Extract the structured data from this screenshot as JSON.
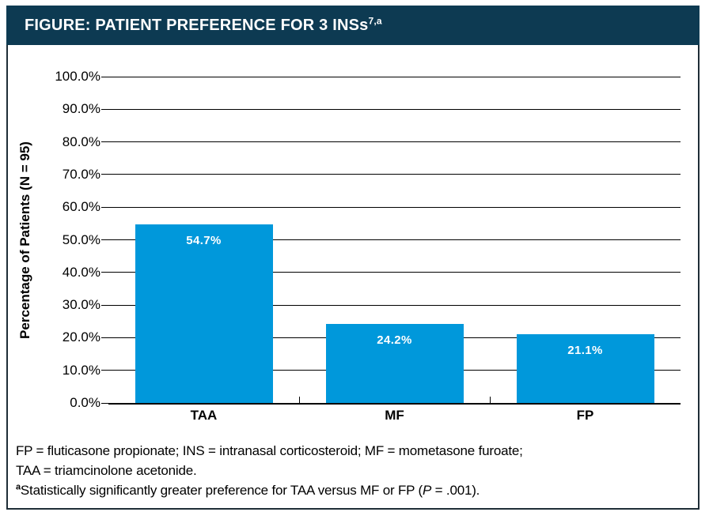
{
  "header": {
    "title": "FIGURE: PATIENT PREFERENCE FOR 3 INSs",
    "title_superscript": "7,a"
  },
  "chart_data": {
    "type": "bar",
    "categories": [
      "TAA",
      "MF",
      "FP"
    ],
    "values": [
      54.7,
      24.2,
      21.1
    ],
    "value_labels": [
      "54.7%",
      "24.2%",
      "21.1%"
    ],
    "title": "FIGURE: PATIENT PREFERENCE FOR 3 INSs",
    "xlabel": "",
    "ylabel": "Percentage of Patients (N = 95)",
    "ylim": [
      0,
      100
    ],
    "ytick_step": 10,
    "ytick_labels": [
      "0.0%",
      "10.0%",
      "20.0%",
      "30.0%",
      "40.0%",
      "50.0%",
      "60.0%",
      "70.0%",
      "80.0%",
      "90.0%",
      "100.0%"
    ],
    "grid": true,
    "legend_position": "none",
    "bar_color": "#0098DB",
    "value_label_color": "#FFFFFF"
  },
  "footnotes": {
    "line1": "FP = fluticasone propionate; INS = intranasal corticosteroid; MF = mometasone furoate;",
    "line2": "TAA = triamcinolone acetonide.",
    "line3_superscript": "a",
    "line3_text": "Statistically significantly greater preference for TAA versus MF or FP (",
    "line3_italic": "P",
    "line3_suffix": " = .001)."
  },
  "colors": {
    "header_bg": "#0D3A52",
    "bar": "#0098DB",
    "border": "#1F2E37",
    "grid": "#000000",
    "title_text": "#FFFFFF"
  }
}
